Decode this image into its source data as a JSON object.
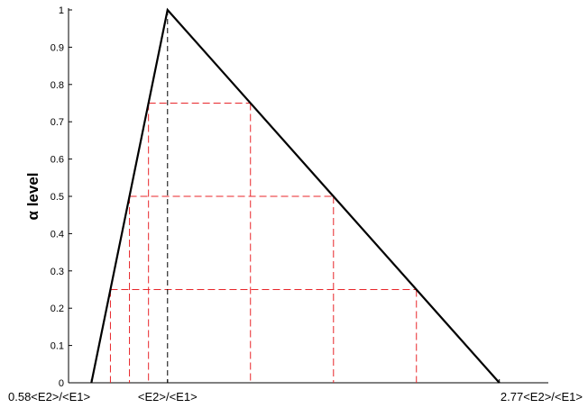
{
  "chart_data": {
    "type": "line",
    "title": "",
    "xlabel": "",
    "ylabel": "α level",
    "ylim": [
      0,
      1
    ],
    "yticks": [
      "0",
      "0.1",
      "0.2",
      "0.3",
      "0.4",
      "0.5",
      "0.6",
      "0.7",
      "0.8",
      "0.9",
      "1"
    ],
    "xticks": [
      {
        "x": 0,
        "label": "0.58<E2>/<E1>"
      },
      {
        "x": 1,
        "label": "<E2>/<E1>"
      },
      {
        "x": 5.357,
        "label": "2.77<E2>/<E1>"
      }
    ],
    "xlim": [
      -0.3,
      6.0
    ],
    "series": [
      {
        "values": [
          {
            "x": 0,
            "y": 0
          },
          {
            "x": 1,
            "y": 1
          },
          {
            "x": 5.357,
            "y": 0
          }
        ]
      }
    ],
    "alpha_cuts": [
      {
        "alpha": 0.25,
        "left": 0.25,
        "right": 4.268
      },
      {
        "alpha": 0.5,
        "left": 0.5,
        "right": 3.179
      },
      {
        "alpha": 0.75,
        "left": 0.75,
        "right": 2.089
      }
    ],
    "peak_line": {
      "x": 1
    },
    "colors": {
      "series": "#000000",
      "alpha_cuts": "#e8262a",
      "peak_line": "#000000"
    },
    "grid": false
  }
}
